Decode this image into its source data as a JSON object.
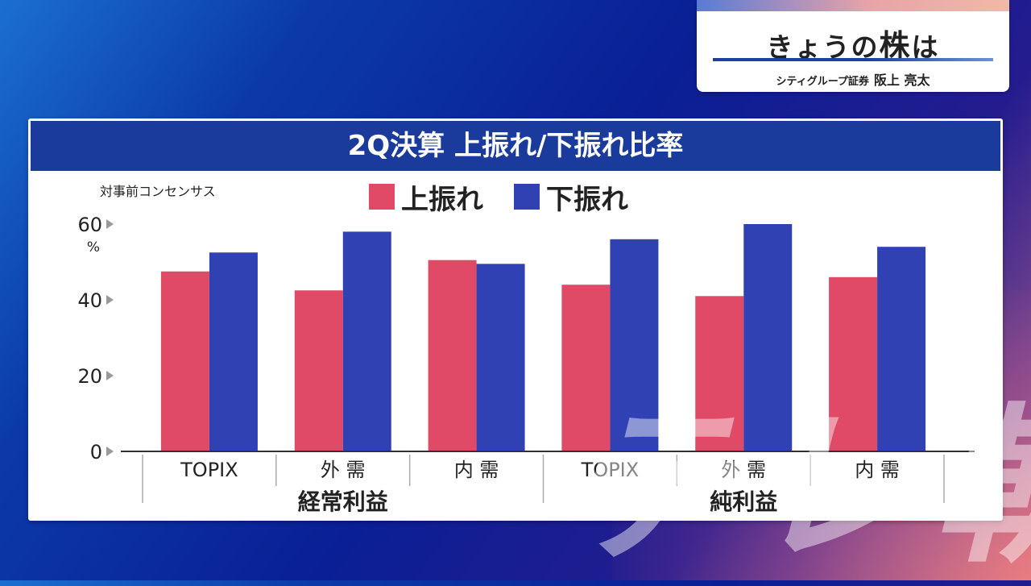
{
  "show": {
    "title_prefix": "きょうの",
    "title_emphasis": "株",
    "title_suffix": "は",
    "presenter_company": "シティグループ証券",
    "presenter_name": "阪上 亮太"
  },
  "watermark": "テレ朝",
  "colors": {
    "upside": "#e04a67",
    "downside": "#3042b3",
    "header": "#1a3a9c"
  },
  "chart_data": {
    "type": "bar",
    "title": "2Q決算 上振れ/下振れ比率",
    "ylabel": "対事前コンセンサス",
    "y_unit": "%",
    "ylim": [
      0,
      60
    ],
    "yticks": [
      0,
      20,
      40,
      60
    ],
    "categories": [
      "TOPIX",
      "外 需",
      "内 需",
      "TOPIX",
      "外 需",
      "内 需"
    ],
    "groups": [
      {
        "label": "経常利益",
        "categories": [
          "TOPIX",
          "外 需",
          "内 需"
        ]
      },
      {
        "label": "純利益",
        "categories": [
          "TOPIX",
          "外 需",
          "内 需"
        ]
      }
    ],
    "series": [
      {
        "name": "上振れ",
        "color": "#e04a67",
        "values": [
          47.5,
          42.5,
          50.5,
          44,
          41,
          46
        ]
      },
      {
        "name": "下振れ",
        "color": "#3042b3",
        "values": [
          52.5,
          58,
          49.5,
          56,
          60,
          54
        ]
      }
    ],
    "legend_position": "top-center",
    "grid": false
  }
}
